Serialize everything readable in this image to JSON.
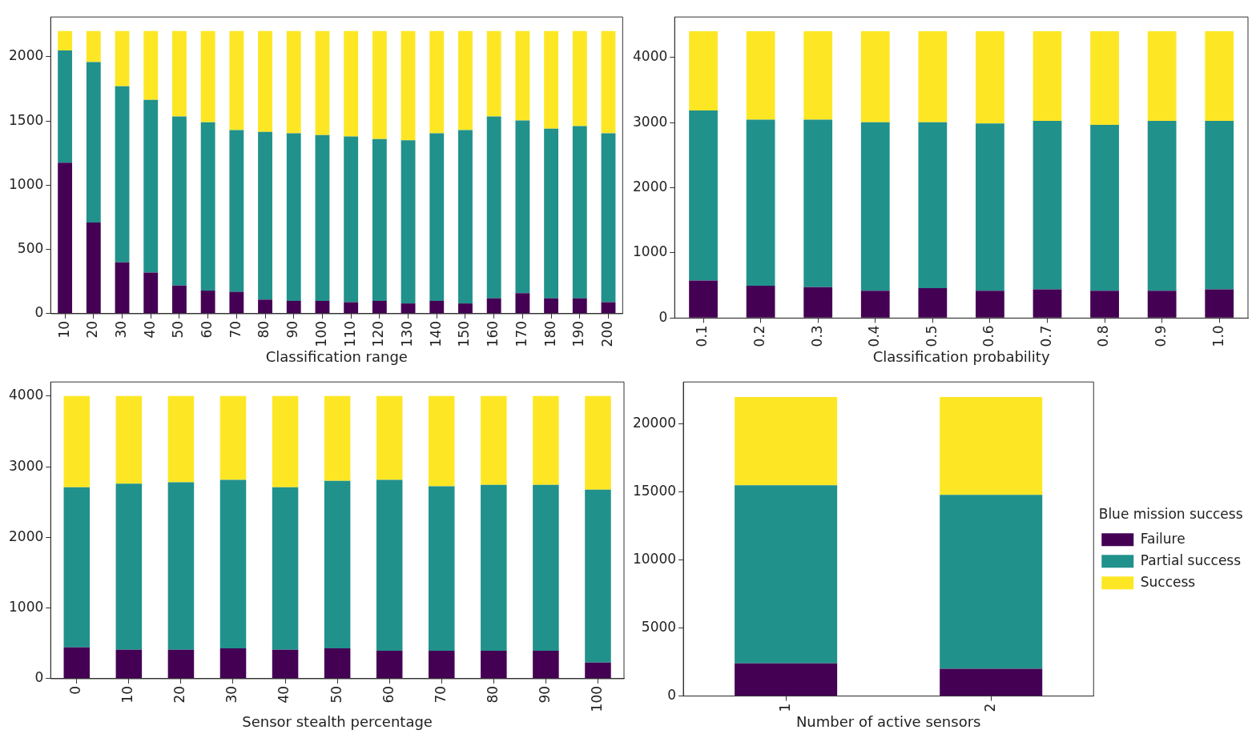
{
  "chart_data": [
    {
      "type": "bar",
      "xlabel": "Classification range",
      "stacked": true,
      "grid": false,
      "legend": false,
      "categories": [
        "10",
        "20",
        "30",
        "40",
        "50",
        "60",
        "70",
        "80",
        "90",
        "100",
        "110",
        "120",
        "130",
        "140",
        "150",
        "160",
        "170",
        "180",
        "190",
        "200"
      ],
      "ylim": [
        0,
        2310
      ],
      "yticks": [
        0,
        500,
        1000,
        1500,
        2000
      ],
      "series": [
        {
          "color": "#440154",
          "values": [
            1175,
            710,
            400,
            320,
            220,
            180,
            170,
            110,
            100,
            100,
            90,
            100,
            80,
            100,
            80,
            120,
            160,
            120,
            120,
            90
          ]
        },
        {
          "color": "#21918c",
          "values": [
            875,
            1250,
            1370,
            1345,
            1315,
            1310,
            1260,
            1305,
            1305,
            1290,
            1290,
            1260,
            1270,
            1305,
            1350,
            1415,
            1345,
            1320,
            1340,
            1315
          ]
        },
        {
          "color": "#fde725",
          "values": [
            150,
            240,
            430,
            535,
            665,
            710,
            770,
            785,
            795,
            810,
            820,
            840,
            850,
            795,
            770,
            665,
            695,
            760,
            740,
            795
          ]
        }
      ]
    },
    {
      "type": "bar",
      "xlabel": "Classification probability",
      "stacked": true,
      "grid": false,
      "legend": false,
      "categories": [
        "0.1",
        "0.2",
        "0.3",
        "0.4",
        "0.5",
        "0.6",
        "0.7",
        "0.8",
        "0.9",
        "1.0"
      ],
      "ylim": [
        0,
        4620
      ],
      "yticks": [
        0,
        1000,
        2000,
        3000,
        4000
      ],
      "series": [
        {
          "color": "#440154",
          "values": [
            575,
            495,
            475,
            420,
            460,
            420,
            440,
            420,
            420,
            440
          ]
        },
        {
          "color": "#21918c",
          "values": [
            2610,
            2550,
            2570,
            2585,
            2545,
            2565,
            2585,
            2545,
            2605,
            2585
          ]
        },
        {
          "color": "#fde725",
          "values": [
            1215,
            1355,
            1355,
            1395,
            1395,
            1415,
            1375,
            1435,
            1375,
            1375
          ]
        }
      ]
    },
    {
      "type": "bar",
      "xlabel": "Sensor stealth percentage",
      "stacked": true,
      "grid": false,
      "legend": false,
      "categories": [
        "0",
        "10",
        "20",
        "30",
        "40",
        "50",
        "60",
        "70",
        "80",
        "90",
        "100"
      ],
      "ylim": [
        0,
        4200
      ],
      "yticks": [
        0,
        1000,
        2000,
        3000,
        4000
      ],
      "series": [
        {
          "color": "#440154",
          "values": [
            445,
            410,
            410,
            430,
            410,
            430,
            395,
            395,
            395,
            395,
            230
          ]
        },
        {
          "color": "#21918c",
          "values": [
            2265,
            2350,
            2370,
            2385,
            2300,
            2370,
            2420,
            2330,
            2350,
            2350,
            2445
          ]
        },
        {
          "color": "#fde725",
          "values": [
            1290,
            1240,
            1220,
            1185,
            1290,
            1200,
            1185,
            1275,
            1255,
            1255,
            1325
          ]
        }
      ]
    },
    {
      "type": "bar",
      "xlabel": "Number of active sensors",
      "stacked": true,
      "grid": false,
      "legend": "right",
      "legend_title": "Blue mission success",
      "categories": [
        "1",
        "2"
      ],
      "ylim": [
        0,
        23100
      ],
      "yticks": [
        0,
        5000,
        10000,
        15000,
        20000
      ],
      "series": [
        {
          "name": "Failure",
          "color": "#440154",
          "values": [
            2400,
            2000
          ]
        },
        {
          "name": "Partial success",
          "color": "#21918c",
          "values": [
            13100,
            12800
          ]
        },
        {
          "name": "Success",
          "color": "#fde725",
          "values": [
            6500,
            7200
          ]
        }
      ]
    }
  ]
}
